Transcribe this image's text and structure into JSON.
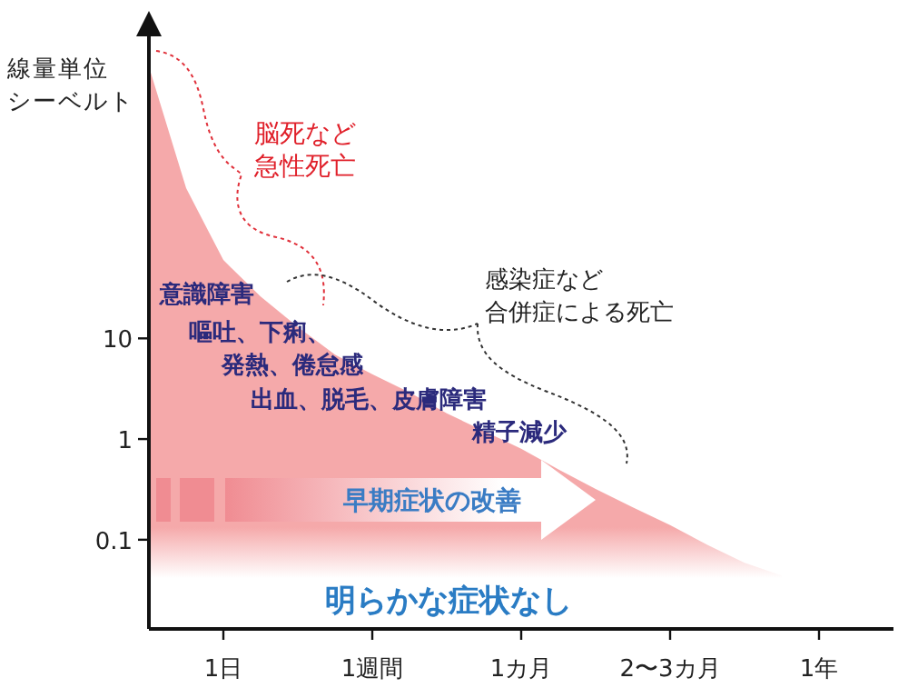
{
  "chart_data": {
    "type": "area",
    "log": "y",
    "ylabel": "線量単位シーベルト",
    "categories": [
      null,
      null,
      "1日",
      null,
      null,
      null,
      "1週間",
      null,
      null,
      null,
      "1カ月",
      null,
      null,
      null,
      "2〜3カ月",
      null,
      null,
      null,
      "1年",
      null,
      null
    ],
    "series": [
      {
        "color": "#f5a9aa",
        "values": [
          5000,
          310,
          60,
          26,
          13,
          6.9,
          4.4,
          2.9,
          1.8,
          1.2,
          0.8,
          0.5,
          0.32,
          0.21,
          0.14,
          0.089,
          0.059,
          0.044,
          null,
          null,
          null
        ]
      }
    ],
    "ylim": [
      0.013,
      10000
    ],
    "yticks": [
      0.1,
      1,
      10
    ],
    "annotations": [
      "脳死など",
      "急性死亡",
      "感染症など",
      "合併症による死亡",
      "意識障害",
      "嘔吐、下痢、",
      "発熱、倦怠感",
      "出血、脱毛、皮膚障害",
      "精子減少",
      "早期症状の改善",
      "明らかな症状なし"
    ]
  }
}
